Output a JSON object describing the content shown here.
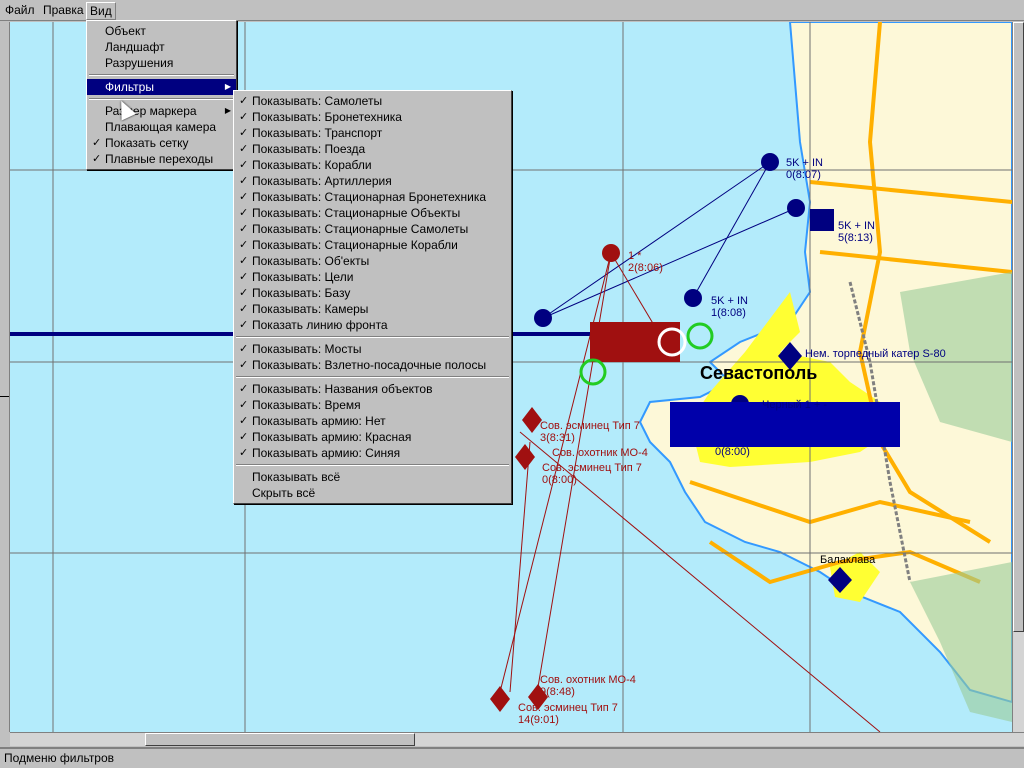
{
  "menubar": {
    "items": [
      "Файл",
      "Правка",
      "Вид"
    ]
  },
  "view_menu": {
    "items": [
      {
        "label": "Объект"
      },
      {
        "label": "Ландшафт"
      },
      {
        "label": "Разрушения"
      },
      {
        "separator": true
      },
      {
        "label": "Фильтры",
        "submenu": true,
        "selected": true
      },
      {
        "separator": true
      },
      {
        "label": "Размер маркера",
        "submenu": true
      },
      {
        "label": "Плавающая камера"
      },
      {
        "label": "Показать сетку",
        "checked": true
      },
      {
        "label": "Плавные переходы",
        "checked": true
      }
    ]
  },
  "filters_menu": {
    "items": [
      {
        "label": "Показывать: Самолеты",
        "checked": true
      },
      {
        "label": "Показывать: Бронетехника",
        "checked": true
      },
      {
        "label": "Показывать: Транспорт",
        "checked": true
      },
      {
        "label": "Показывать: Поезда",
        "checked": true
      },
      {
        "label": "Показывать: Корабли",
        "checked": true
      },
      {
        "label": "Показывать: Артиллерия",
        "checked": true
      },
      {
        "label": "Показывать: Стационарная Бронетехника",
        "checked": true
      },
      {
        "label": "Показывать: Стационарные Объекты",
        "checked": true
      },
      {
        "label": "Показывать: Стационарные Самолеты",
        "checked": true
      },
      {
        "label": "Показывать: Стационарные Корабли",
        "checked": true
      },
      {
        "label": "Показывать: Об'екты",
        "checked": true
      },
      {
        "label": "Показывать: Цели",
        "checked": true
      },
      {
        "label": "Показывать: Базу",
        "checked": true
      },
      {
        "label": "Показывать: Камеры",
        "checked": true
      },
      {
        "label": "Показать линию фронта",
        "checked": true
      },
      {
        "separator": true
      },
      {
        "label": "Показывать: Мосты",
        "checked": true
      },
      {
        "label": "Показывать: Взлетно-посадочные полосы",
        "checked": true
      },
      {
        "separator": true
      },
      {
        "label": "Показывать: Названия объектов",
        "checked": true
      },
      {
        "label": "Показывать: Время",
        "checked": true
      },
      {
        "label": "Показывать армию: Нет",
        "checked": true
      },
      {
        "label": "Показывать армию: Красная",
        "checked": true
      },
      {
        "label": "Показывать армию: Синяя",
        "checked": true
      },
      {
        "separator": true
      },
      {
        "label": "Показывать всё"
      },
      {
        "label": "Скрыть всё"
      }
    ]
  },
  "map": {
    "colors": {
      "sea": "#b3ebfb",
      "land": "#fdf8d8",
      "city": "#ffff33",
      "red_army": "#a01010",
      "blue_army": "#000080",
      "road": "#ffb000"
    },
    "cities": [
      {
        "name": "Севастополь"
      },
      {
        "name": "Балаклава"
      }
    ],
    "labels": [
      {
        "text": "5K + IN\n0(8:07)",
        "army": "blue"
      },
      {
        "text": "5K + IN\n5(8:13)",
        "army": "blue"
      },
      {
        "text": "5K + IN\n1(8:08)",
        "army": "blue"
      },
      {
        "text": "1 *\n2(8:06)",
        "army": "red"
      },
      {
        "text": "Нем. торпедный катер S-80",
        "army": "blue"
      },
      {
        "text": "Черный 1 + -",
        "army": "blue"
      },
      {
        "text": "0(8:00)",
        "army": "blue"
      },
      {
        "text": "Сов. эсминец Тип 7\n3(8:31)",
        "army": "red"
      },
      {
        "text": "Сов. охотник МО-4",
        "army": "red"
      },
      {
        "text": "Сов. эсминец Тип 7\n0(8:00)",
        "army": "red"
      },
      {
        "text": "Сов. охотник МО-4\n9(8:48)",
        "army": "red"
      },
      {
        "text": "Сов. эсминец Тип 7\n14(9:01)",
        "army": "red"
      }
    ]
  },
  "status": {
    "text": "Подменю фильтров"
  }
}
